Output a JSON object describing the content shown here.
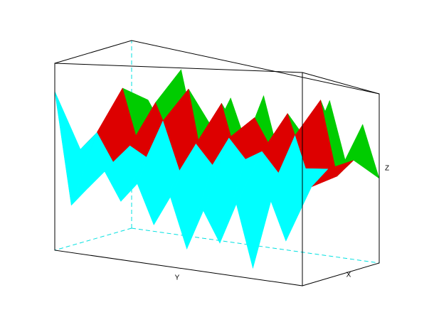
{
  "chart_data": {
    "type": "surface3d",
    "x_label": "X",
    "y_label": "Y",
    "z_label": "Z",
    "zlim": [
      0,
      1
    ],
    "colors": [
      "#00ffff",
      "#dd0000",
      "#00cc00"
    ],
    "z": [
      [
        0.85,
        0.25,
        0.35,
        0.45,
        0.3,
        0.4,
        0.2,
        0.35,
        0.1,
        0.3,
        0.15,
        0.35,
        0.05,
        0.4,
        0.2,
        0.55
      ],
      [
        0.5,
        0.6,
        0.45,
        0.55,
        0.5,
        0.7,
        0.45,
        0.6,
        0.5,
        0.65,
        0.55,
        0.6,
        0.5,
        0.7,
        0.45,
        0.55
      ],
      [
        0.45,
        0.8,
        0.5,
        0.75,
        0.55,
        0.85,
        0.4,
        0.8,
        0.5,
        0.75,
        0.6,
        0.8,
        0.55,
        0.9,
        0.5,
        0.6
      ],
      [
        0.5,
        0.7,
        0.55,
        0.9,
        0.5,
        0.6,
        0.8,
        0.55,
        0.85,
        0.5,
        0.7,
        0.6,
        0.9,
        0.55,
        0.8,
        0.5
      ]
    ]
  }
}
